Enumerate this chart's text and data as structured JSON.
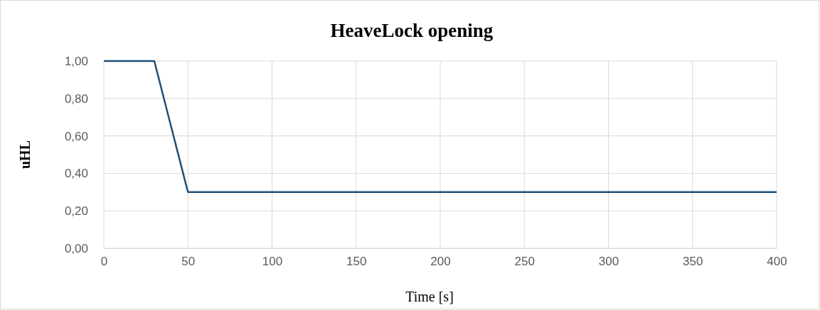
{
  "chart_data": {
    "type": "line",
    "title": "HeaveLock opening",
    "xlabel": "Time [s]",
    "ylabel": "uHL",
    "x": [
      0,
      30,
      50,
      400
    ],
    "series": [
      {
        "color": "#1f4e79",
        "values": [
          1,
          1,
          0.3,
          0.3
        ]
      }
    ],
    "xlim": [
      0,
      400
    ],
    "xticks": [
      0,
      50,
      100,
      150,
      200,
      250,
      300,
      350,
      400
    ],
    "ylim": [
      0,
      1
    ],
    "yticks": [
      {
        "value": 0,
        "label": "0,00"
      },
      {
        "value": 0.2,
        "label": "0,20"
      },
      {
        "value": 0.4,
        "label": "0,40"
      },
      {
        "value": 0.6,
        "label": "0,60"
      },
      {
        "value": 0.8,
        "label": "0,80"
      },
      {
        "value": 1,
        "label": "1,00"
      }
    ],
    "grid": true,
    "marker": "none",
    "line_style": "solid"
  }
}
